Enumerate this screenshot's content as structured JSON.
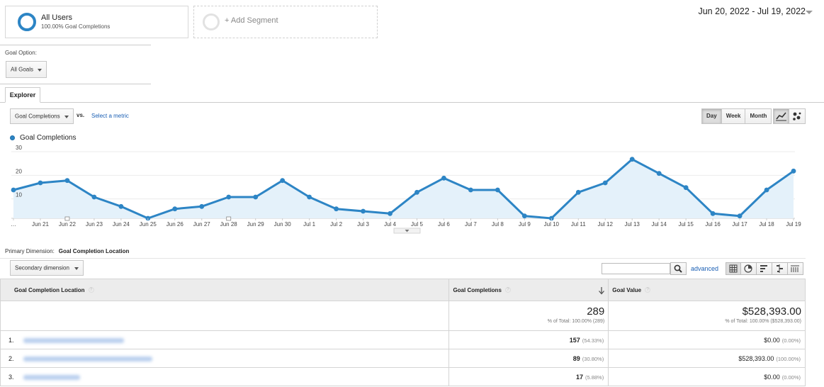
{
  "segments": {
    "all_users": {
      "title": "All Users",
      "subtitle": "100.00% Goal Completions"
    },
    "add_segment": {
      "label": "+ Add Segment"
    }
  },
  "date_range": "Jun 20, 2022 - Jul 19, 2022",
  "goal_option": {
    "label": "Goal Option:",
    "selected": "All Goals"
  },
  "tabs": [
    {
      "label": "Explorer"
    }
  ],
  "metric_bar": {
    "metric": "Goal Completions",
    "vs": "vs.",
    "select_metric": "Select a metric",
    "granularity": [
      "Day",
      "Week",
      "Month"
    ],
    "active_granularity": "Day"
  },
  "chart_data": {
    "type": "area",
    "series": [
      {
        "name": "Goal Completions",
        "values": [
          12,
          15,
          16,
          9,
          5,
          0,
          4,
          5,
          9,
          9,
          16,
          9,
          4,
          3,
          2,
          11,
          17,
          12,
          12,
          1,
          0,
          11,
          15,
          25,
          19,
          13,
          2,
          1,
          12,
          20
        ]
      }
    ],
    "x_first": "…",
    "x": [
      "…",
      "Jun 21",
      "Jun 22",
      "Jun 23",
      "Jun 24",
      "Jun 25",
      "Jun 26",
      "Jun 27",
      "Jun 28",
      "Jun 29",
      "Jun 30",
      "Jul 1",
      "Jul 2",
      "Jul 3",
      "Jul 4",
      "Jul 5",
      "Jul 6",
      "Jul 7",
      "Jul 8",
      "Jul 9",
      "Jul 10",
      "Jul 11",
      "Jul 12",
      "Jul 13",
      "Jul 14",
      "Jul 15",
      "Jul 16",
      "Jul 17",
      "Jul 18",
      "Jul 19"
    ],
    "y_ticks": [
      10,
      20,
      30
    ],
    "ylim": [
      0,
      30
    ],
    "grid": true,
    "color": "#2d85c5",
    "fill": "#e4f1fa"
  },
  "primary_dimension": {
    "label": "Primary Dimension:",
    "value": "Goal Completion Location"
  },
  "secondary_dimension": {
    "label": "Secondary dimension"
  },
  "advanced_link": "advanced",
  "table": {
    "columns": [
      "Goal Completion Location",
      "Goal Completions",
      "Goal Value"
    ],
    "totals": {
      "goal_completions": "289",
      "goal_completions_pct": "% of Total: 100.00% (289)",
      "goal_value": "$528,393.00",
      "goal_value_pct": "% of Total: 100.00% ($528,393.00)"
    },
    "rows": [
      {
        "index": "1.",
        "completions": "157",
        "completions_pct": "(54.33%)",
        "value": "$0.00",
        "value_pct": "(0.00%)"
      },
      {
        "index": "2.",
        "completions": "89",
        "completions_pct": "(30.80%)",
        "value": "$528,393.00",
        "value_pct": "(100.00%)"
      },
      {
        "index": "3.",
        "completions": "17",
        "completions_pct": "(5.88%)",
        "value": "$0.00",
        "value_pct": "(0.00%)"
      }
    ]
  }
}
